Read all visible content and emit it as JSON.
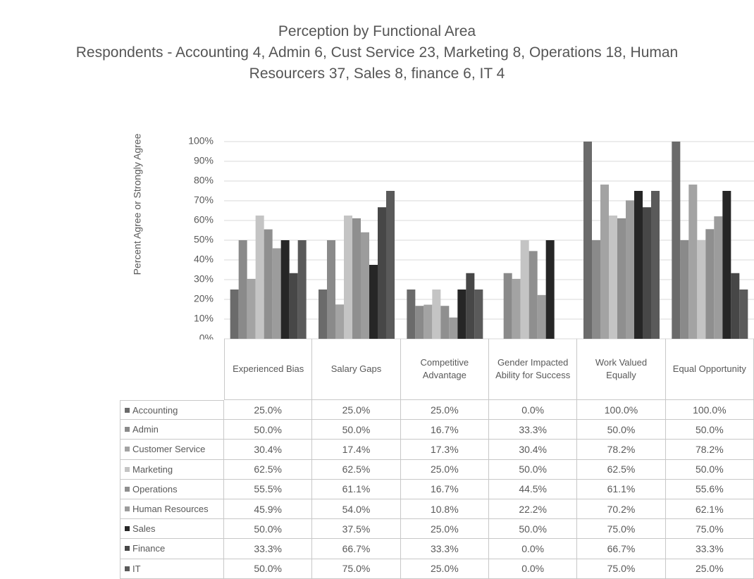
{
  "chart_data": {
    "type": "bar",
    "title": "Perception by Functional Area",
    "subtitle": "Respondents - Accounting 4, Admin 6, Cust Service 23, Marketing 8, Operations 18, Human Resourcers 37, Sales 8, finance 6, IT 4",
    "y_label": "Percent Agree or Strongly Agree",
    "categories": [
      "Experienced Bias",
      "Salary Gaps",
      "Competitive Advantage",
      "Gender Impacted Ability for Success",
      "Work Valued Equally",
      "Equal Opportunity"
    ],
    "series": [
      {
        "name": "Accounting",
        "color": "#6b6b6b",
        "values": [
          25,
          25,
          25,
          0,
          100,
          100
        ],
        "value_labels": [
          "25.0%",
          "25.0%",
          "25.0%",
          "0.0%",
          "100.0%",
          "100.0%"
        ]
      },
      {
        "name": "Admin",
        "color": "#8a8a8a",
        "values": [
          50,
          50,
          16.7,
          33.3,
          50,
          50
        ],
        "value_labels": [
          "50.0%",
          "50.0%",
          "16.7%",
          "33.3%",
          "50.0%",
          "50.0%"
        ]
      },
      {
        "name": "Customer Service",
        "color": "#a3a3a3",
        "values": [
          30.4,
          17.4,
          17.3,
          30.4,
          78.2,
          78.2
        ],
        "value_labels": [
          "30.4%",
          "17.4%",
          "17.3%",
          "30.4%",
          "78.2%",
          "78.2%"
        ]
      },
      {
        "name": "Marketing",
        "color": "#c4c4c4",
        "values": [
          62.5,
          62.5,
          25,
          50,
          62.5,
          50
        ],
        "value_labels": [
          "62.5%",
          "62.5%",
          "25.0%",
          "50.0%",
          "62.5%",
          "50.0%"
        ]
      },
      {
        "name": "Operations",
        "color": "#8f8f8f",
        "values": [
          55.5,
          61.1,
          16.7,
          44.5,
          61.1,
          55.6
        ],
        "value_labels": [
          "55.5%",
          "61.1%",
          "16.7%",
          "44.5%",
          "61.1%",
          "55.6%"
        ]
      },
      {
        "name": "Human Resources",
        "color": "#9c9c9c",
        "values": [
          45.9,
          54,
          10.8,
          22.2,
          70.2,
          62.1
        ],
        "value_labels": [
          "45.9%",
          "54.0%",
          "10.8%",
          "22.2%",
          "70.2%",
          "62.1%"
        ]
      },
      {
        "name": "Sales",
        "color": "#262626",
        "values": [
          50,
          37.5,
          25,
          50,
          75,
          75
        ],
        "value_labels": [
          "50.0%",
          "37.5%",
          "25.0%",
          "50.0%",
          "75.0%",
          "75.0%"
        ]
      },
      {
        "name": "Finance",
        "color": "#474747",
        "values": [
          33.3,
          66.7,
          33.3,
          0,
          66.7,
          33.3
        ],
        "value_labels": [
          "33.3%",
          "66.7%",
          "33.3%",
          "0.0%",
          "66.7%",
          "33.3%"
        ]
      },
      {
        "name": "IT",
        "color": "#5a5a5a",
        "values": [
          50,
          75,
          25,
          0,
          75,
          25
        ],
        "value_labels": [
          "50.0%",
          "75.0%",
          "25.0%",
          "0.0%",
          "75.0%",
          "25.0%"
        ]
      }
    ],
    "ylim": [
      0,
      100
    ],
    "yticks": [
      {
        "value": 0,
        "label": "0%"
      },
      {
        "value": 10,
        "label": "10%"
      },
      {
        "value": 20,
        "label": "20%"
      },
      {
        "value": 30,
        "label": "30%"
      },
      {
        "value": 40,
        "label": "40%"
      },
      {
        "value": 50,
        "label": "50%"
      },
      {
        "value": 60,
        "label": "60%"
      },
      {
        "value": 70,
        "label": "70%"
      },
      {
        "value": 80,
        "label": "80%"
      },
      {
        "value": 90,
        "label": "90%"
      },
      {
        "value": 100,
        "label": "100%"
      }
    ],
    "grid": true
  }
}
